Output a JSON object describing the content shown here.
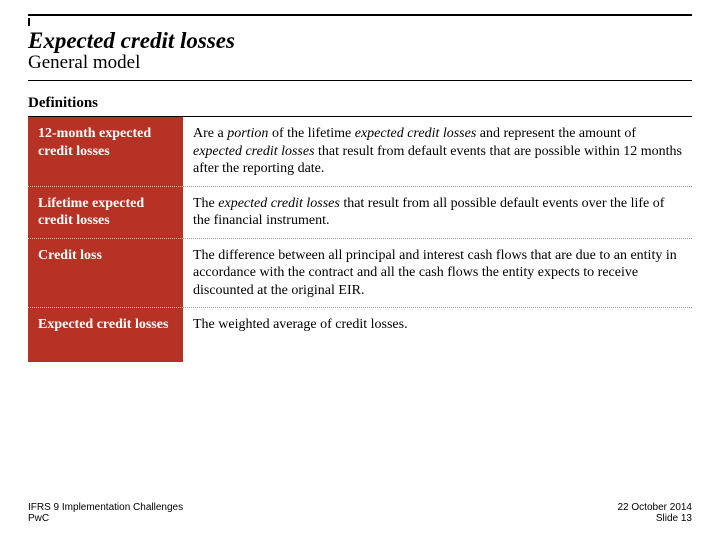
{
  "header": {
    "title": "Expected credit losses",
    "subtitle": "General model",
    "section_label": "Definitions"
  },
  "colors": {
    "term_bg": "#b53224",
    "term_text": "#ffffff",
    "rule": "#000000",
    "dotted_light": "#e8b0a8",
    "dotted_gray": "#999999"
  },
  "typography": {
    "title_fontsize": 23,
    "subtitle_fontsize": 19,
    "section_fontsize": 15,
    "body_fontsize": 14,
    "footer_fontsize": 10
  },
  "definitions": [
    {
      "term": "12-month expected credit losses",
      "desc_html": "Are a <span class='italic'>portion</span> of the lifetime <span class='italic'>expected credit losses</span> and represent the amount of <span class='italic'>expected credit losses</span> that result from default events that are possible within 12 months after the reporting date."
    },
    {
      "term": "Lifetime expected credit losses",
      "desc_html": "The <span class='italic'>expected credit losses</span> that result from all possible default events over the life of the financial instrument."
    },
    {
      "term": "Credit loss",
      "desc_html": "The difference between all principal and interest cash flows that are due to an entity in accordance with the contract and all the cash flows the entity expects to receive discounted at the original EIR."
    },
    {
      "term": "Expected credit losses",
      "desc_html": "The weighted average of credit losses."
    }
  ],
  "footer": {
    "left_line1": "IFRS 9 Implementation Challenges",
    "left_line2": "PwC",
    "right_line1": "22 October 2014",
    "right_line2": "Slide 13"
  }
}
